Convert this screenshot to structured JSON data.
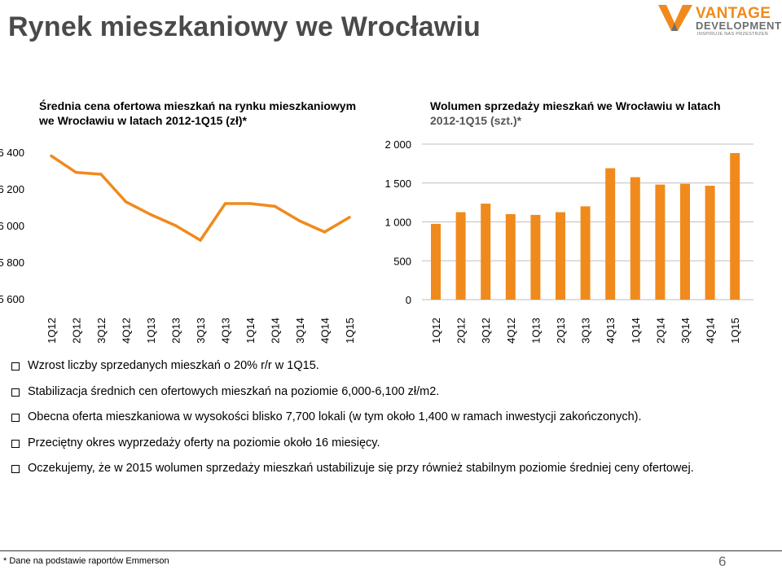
{
  "page": {
    "title": "Rynek mieszkaniowy we Wrocławiu",
    "logo": {
      "brand": "VANTAGE",
      "sub": "DEVELOPMENT",
      "tag": "INSPIRUJE NAS PRZESTRZEŃ"
    },
    "footnote": "* Dane na podstawie raportów Emmerson",
    "page_number": "6",
    "bullets": [
      "Wzrost liczby sprzedanych mieszkań o 20% r/r w 1Q15.",
      "Stabilizacja średnich cen ofertowych mieszkań na poziomie 6,000-6,100 zł/m2.",
      "Obecna oferta mieszkaniowa w wysokości blisko 7,700 lokali (w tym około 1,400 w ramach inwestycji zakończonych).",
      "Przeciętny okres wyprzedaży oferty na poziomie około 16 miesięcy.",
      "Oczekujemy, że w 2015 wolumen sprzedaży mieszkań ustabilizuje się przy również stabilnym poziomie średniej ceny ofertowej."
    ],
    "colors": {
      "line": "#f08a1d",
      "bar": "#f08a1d",
      "grid": "#bfbfbf",
      "title": "#4a4a4a"
    }
  },
  "chart_data": [
    {
      "type": "line",
      "title": "Średnia cena ofertowa mieszkań na rynku mieszkaniowym we Wrocławiu w latach 2012-1Q15 (zł)*",
      "categories": [
        "1Q12",
        "2Q12",
        "3Q12",
        "4Q12",
        "1Q13",
        "2Q13",
        "3Q13",
        "4Q13",
        "1Q14",
        "2Q14",
        "3Q14",
        "4Q14",
        "1Q15"
      ],
      "values": [
        6380,
        6290,
        6280,
        6130,
        6060,
        6000,
        5920,
        6120,
        6120,
        6105,
        6025,
        5965,
        6045
      ],
      "ylim": [
        5600,
        6400
      ],
      "yticks": [
        "6 400",
        "6 200",
        "6 000",
        "5 800",
        "5 600"
      ],
      "grid": false
    },
    {
      "type": "bar",
      "title": "Wolumen sprzedaży mieszkań we Wrocławiu w latach 2012-1Q15 (szt.)*",
      "title_part1": "Wolumen sprzedaży mieszkań we Wrocławiu w latach",
      "title_part2": "2012-1Q15 (szt.)*",
      "categories": [
        "1Q12",
        "2Q12",
        "3Q12",
        "4Q12",
        "1Q13",
        "2Q13",
        "3Q13",
        "4Q13",
        "1Q14",
        "2Q14",
        "3Q14",
        "4Q14",
        "1Q15"
      ],
      "values": [
        975,
        1125,
        1235,
        1100,
        1090,
        1125,
        1200,
        1690,
        1575,
        1480,
        1490,
        1465,
        1885
      ],
      "ylim": [
        0,
        2000
      ],
      "yticks": [
        "2 000",
        "1 500",
        "1 000",
        "500",
        "0"
      ],
      "grid": true
    }
  ]
}
